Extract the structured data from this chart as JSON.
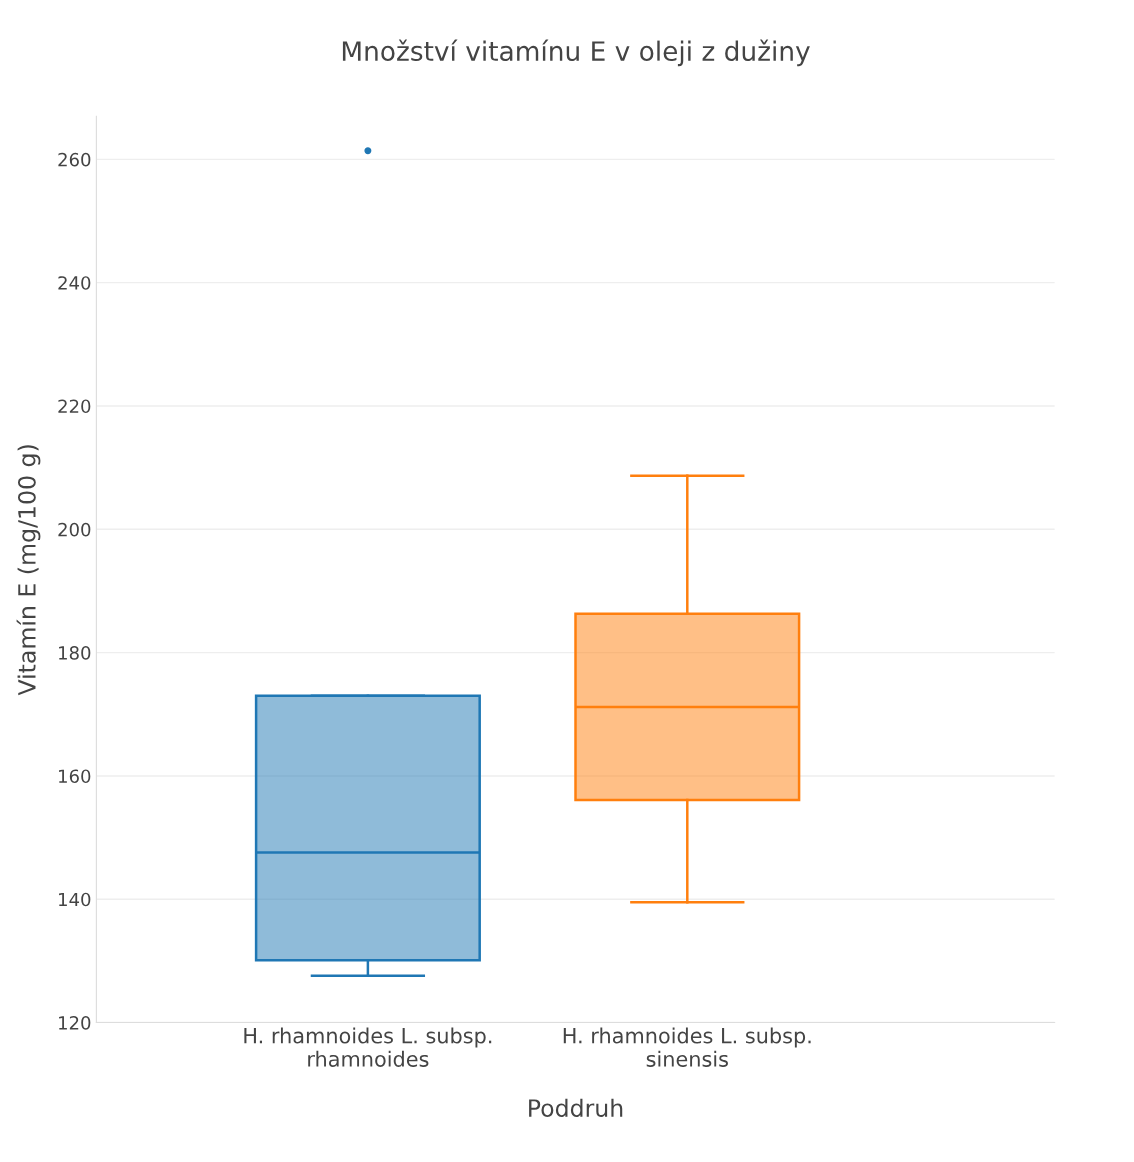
{
  "chart_data": {
    "type": "box",
    "title": "Množství vitamínu E v oleji z dužiny",
    "xlabel": "Poddruh",
    "ylabel": "Vitamín E (mg/100 g)",
    "categories": [
      "H. rhamnoides L. subsp.\nrhamnoides",
      "H. rhamnoides L. subsp.\nsinensis"
    ],
    "series": [
      {
        "color": "#1f77b4",
        "boxes": [
          {
            "low": 127.6,
            "q1": 130.1,
            "median": 147.6,
            "q3": 173.0,
            "high": 173.0,
            "outliers": [
              261.4
            ]
          },
          null
        ]
      },
      {
        "color": "#ff7f0e",
        "boxes": [
          null,
          {
            "low": 139.5,
            "q1": 156.1,
            "median": 171.2,
            "q3": 186.3,
            "high": 208.7
          }
        ]
      }
    ],
    "ylim": [
      120,
      267
    ],
    "yticks": [
      120,
      140,
      160,
      180,
      200,
      220,
      240,
      260
    ],
    "grid": "y",
    "legend": false
  }
}
